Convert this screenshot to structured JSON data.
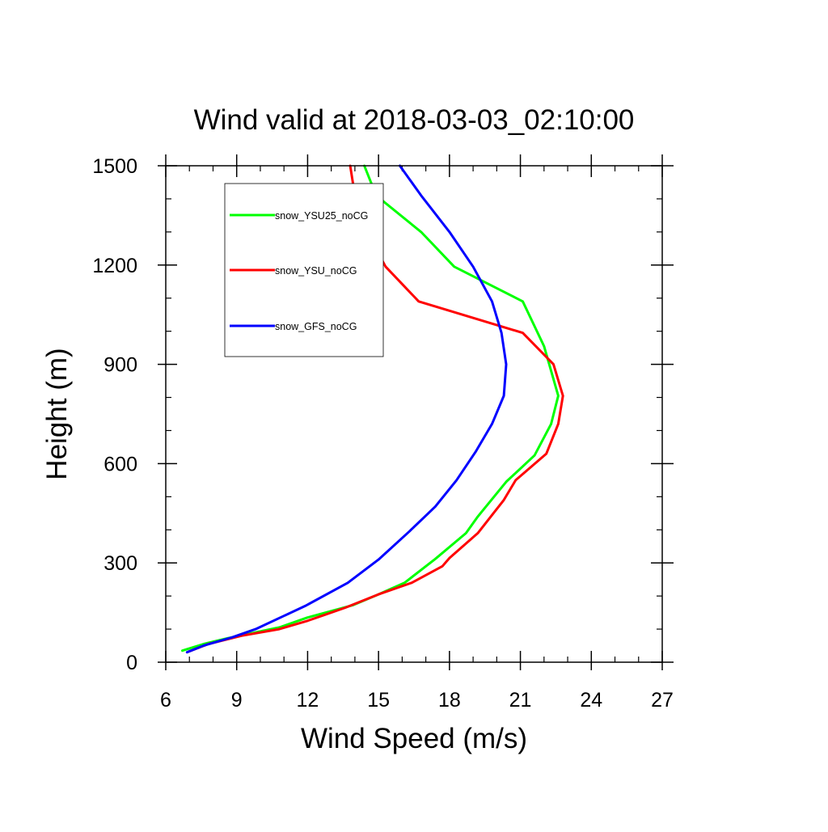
{
  "chart_data": {
    "type": "line",
    "title": "Wind valid at 2018-03-03_02:10:00",
    "xlabel": "Wind Speed (m/s)",
    "ylabel": "Height (m)",
    "xlim": [
      6,
      27
    ],
    "ylim": [
      0,
      1500
    ],
    "x_ticks": [
      6,
      9,
      12,
      15,
      18,
      21,
      24,
      27
    ],
    "y_ticks": [
      0,
      300,
      600,
      900,
      1200,
      1500
    ],
    "x_minor_step": 1,
    "y_minor_step": 100,
    "grid": false,
    "legend_position": "top-left",
    "series": [
      {
        "name": "snow_YSU25_noCG",
        "color": "#00ff00",
        "points": [
          [
            6.7,
            35
          ],
          [
            7.6,
            55
          ],
          [
            8.6,
            72
          ],
          [
            10.8,
            105
          ],
          [
            12.0,
            135
          ],
          [
            13.9,
            172
          ],
          [
            15.0,
            205
          ],
          [
            16.1,
            240
          ],
          [
            17.4,
            312
          ],
          [
            18.7,
            390
          ],
          [
            19.2,
            440
          ],
          [
            20.4,
            545
          ],
          [
            21.6,
            625
          ],
          [
            22.3,
            720
          ],
          [
            22.6,
            805
          ],
          [
            22.0,
            955
          ],
          [
            21.1,
            1090
          ],
          [
            18.2,
            1195
          ],
          [
            16.8,
            1300
          ],
          [
            14.9,
            1410
          ],
          [
            14.4,
            1500
          ]
        ]
      },
      {
        "name": "snow_YSU_noCG",
        "color": "#ff0000",
        "points": [
          [
            7.0,
            33
          ],
          [
            7.8,
            55
          ],
          [
            9.2,
            80
          ],
          [
            10.8,
            100
          ],
          [
            12.0,
            125
          ],
          [
            13.6,
            165
          ],
          [
            15.0,
            205
          ],
          [
            16.4,
            240
          ],
          [
            17.7,
            290
          ],
          [
            18.0,
            315
          ],
          [
            19.2,
            390
          ],
          [
            20.3,
            490
          ],
          [
            20.8,
            550
          ],
          [
            22.1,
            630
          ],
          [
            22.6,
            720
          ],
          [
            22.8,
            805
          ],
          [
            22.4,
            900
          ],
          [
            21.1,
            995
          ],
          [
            16.7,
            1090
          ],
          [
            15.3,
            1195
          ],
          [
            14.5,
            1300
          ],
          [
            14.0,
            1410
          ],
          [
            13.8,
            1500
          ]
        ]
      },
      {
        "name": "snow_GFS_noCG",
        "color": "#0000ff",
        "points": [
          [
            6.9,
            30
          ],
          [
            7.6,
            50
          ],
          [
            8.8,
            75
          ],
          [
            9.8,
            100
          ],
          [
            11.0,
            140
          ],
          [
            11.9,
            170
          ],
          [
            13.7,
            240
          ],
          [
            15.0,
            310
          ],
          [
            16.3,
            395
          ],
          [
            17.4,
            470
          ],
          [
            18.3,
            550
          ],
          [
            19.1,
            635
          ],
          [
            19.8,
            720
          ],
          [
            20.3,
            805
          ],
          [
            20.4,
            900
          ],
          [
            20.2,
            995
          ],
          [
            19.8,
            1090
          ],
          [
            19.0,
            1195
          ],
          [
            18.0,
            1300
          ],
          [
            16.8,
            1410
          ],
          [
            15.9,
            1500
          ]
        ]
      }
    ]
  }
}
